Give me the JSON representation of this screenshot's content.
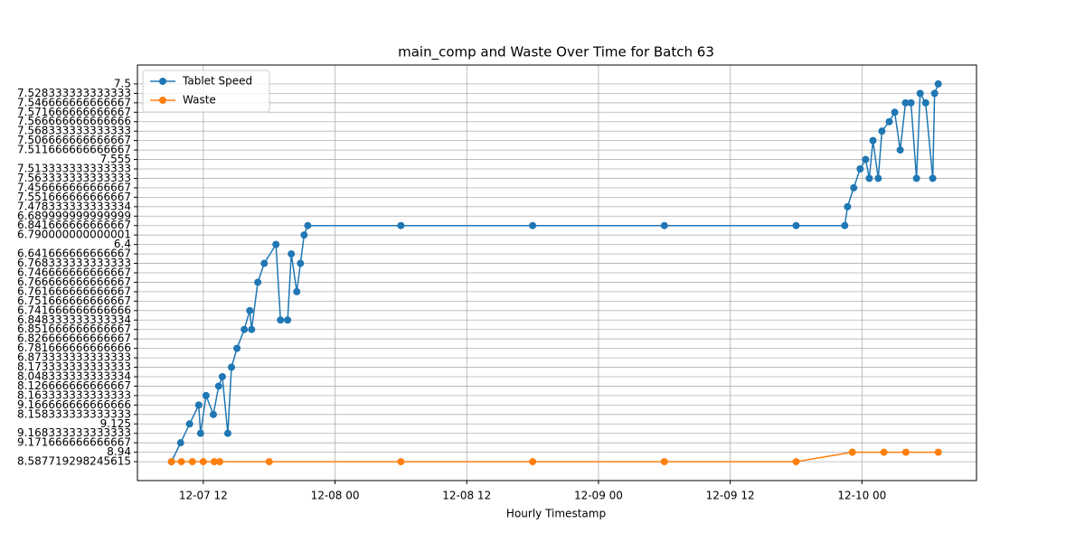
{
  "chart_data": {
    "type": "line",
    "title": "main_comp and Waste Over Time for Batch 63",
    "x_label": "Hourly Timestamp",
    "xlim": [
      "12-07 06:00",
      "12-10 10:26"
    ],
    "xticks": [
      {
        "value": "12-07 12:00",
        "label": "12-07 12"
      },
      {
        "value": "12-08 00:00",
        "label": "12-08 00"
      },
      {
        "value": "12-08 12:00",
        "label": "12-08 12"
      },
      {
        "value": "12-09 00:00",
        "label": "12-09 00"
      },
      {
        "value": "12-09 12:00",
        "label": "12-09 12"
      },
      {
        "value": "12-10 00:00",
        "label": "12-10 00"
      }
    ],
    "y_categories": [
      "8.587719298245615",
      "8.94",
      "9.171666666666667",
      "9.168333333333333",
      "9.125",
      "8.158333333333333",
      "9.166666666666666",
      "8.163333333333333",
      "8.126666666666667",
      "8.048333333333334",
      "8.173333333333333",
      "6.873333333333333",
      "6.781666666666666",
      "6.826666666666667",
      "6.851666666666667",
      "6.848333333333334",
      "6.741666666666666",
      "6.751666666666667",
      "6.761666666666667",
      "6.766666666666667",
      "6.746666666666667",
      "6.768333333333333",
      "6.641666666666667",
      "6.4",
      "6.790000000000001",
      "6.841666666666667",
      "6.689999999999999",
      "7.478333333333334",
      "7.551666666666667",
      "7.456666666666667",
      "7.563333333333333",
      "7.513333333333333",
      "7.555",
      "7.511666666666667",
      "7.506666666666667",
      "7.568333333333333",
      "7.566666666666666",
      "7.571666666666667",
      "7.546666666666667",
      "7.528333333333333",
      "7.5"
    ],
    "grid": true,
    "legend": "upper left",
    "series": [
      {
        "name": "Tablet Speed",
        "color": "#1f77b4",
        "x": [
          "12-07 09:06",
          "12-07 09:56",
          "12-07 10:45",
          "12-07 11:35",
          "12-07 11:45",
          "12-07 12:15",
          "12-07 12:55",
          "12-07 13:24",
          "12-07 13:44",
          "12-07 14:14",
          "12-07 14:34",
          "12-07 15:04",
          "12-07 15:44",
          "12-07 16:14",
          "12-07 16:24",
          "12-07 16:58",
          "12-07 17:33",
          "12-07 18:37",
          "12-07 19:02",
          "12-07 19:41",
          "12-07 20:01",
          "12-07 20:31",
          "12-07 20:51",
          "12-07 21:11",
          "12-07 21:31",
          "12-08 06:00",
          "12-08 18:00",
          "12-09 06:00",
          "12-09 18:00",
          "12-09 22:26",
          "12-09 22:41",
          "12-09 23:15",
          "12-09 23:50",
          "12-10 00:20",
          "12-10 00:40",
          "12-10 01:00",
          "12-10 01:29",
          "12-10 01:49",
          "12-10 02:29",
          "12-10 02:59",
          "12-10 03:29",
          "12-10 03:58",
          "12-10 04:28",
          "12-10 04:58",
          "12-10 05:18",
          "12-10 05:48",
          "12-10 06:27",
          "12-10 06:37",
          "12-10 06:57"
        ],
        "values": [
          "8.587719298245615",
          "9.171666666666667",
          "9.125",
          "9.166666666666666",
          "9.168333333333333",
          "8.163333333333333",
          "8.158333333333333",
          "8.126666666666667",
          "8.048333333333334",
          "9.168333333333333",
          "8.173333333333333",
          "6.781666666666666",
          "6.851666666666667",
          "6.741666666666666",
          "6.851666666666667",
          "6.766666666666667",
          "6.768333333333333",
          "6.4",
          "6.848333333333334",
          "6.848333333333334",
          "6.641666666666667",
          "6.761666666666667",
          "6.768333333333333",
          "6.790000000000001",
          "6.841666666666667",
          "6.841666666666667",
          "6.841666666666667",
          "6.841666666666667",
          "6.841666666666667",
          "6.841666666666667",
          "7.478333333333334",
          "7.456666666666667",
          "7.513333333333333",
          "7.555",
          "7.563333333333333",
          "7.506666666666667",
          "7.563333333333333",
          "7.568333333333333",
          "7.566666666666666",
          "7.571666666666667",
          "7.511666666666667",
          "7.546666666666667",
          "7.546666666666667",
          "7.563333333333333",
          "7.528333333333333",
          "7.546666666666667",
          "7.563333333333333",
          "7.528333333333333",
          "7.5"
        ]
      },
      {
        "name": "Waste",
        "color": "#ff7f0e",
        "x": [
          "12-07 09:06",
          "12-07 10:00",
          "12-07 11:00",
          "12-07 12:00",
          "12-07 13:00",
          "12-07 13:30",
          "12-07 18:00",
          "12-08 06:00",
          "12-08 18:00",
          "12-09 06:00",
          "12-09 18:00",
          "12-09 23:07",
          "12-10 02:00",
          "12-10 04:00",
          "12-10 06:57"
        ],
        "values": [
          "8.587719298245615",
          "8.587719298245615",
          "8.587719298245615",
          "8.587719298245615",
          "8.587719298245615",
          "8.587719298245615",
          "8.587719298245615",
          "8.587719298245615",
          "8.587719298245615",
          "8.587719298245615",
          "8.587719298245615",
          "8.94",
          "8.94",
          "8.94",
          "8.94"
        ]
      }
    ]
  }
}
